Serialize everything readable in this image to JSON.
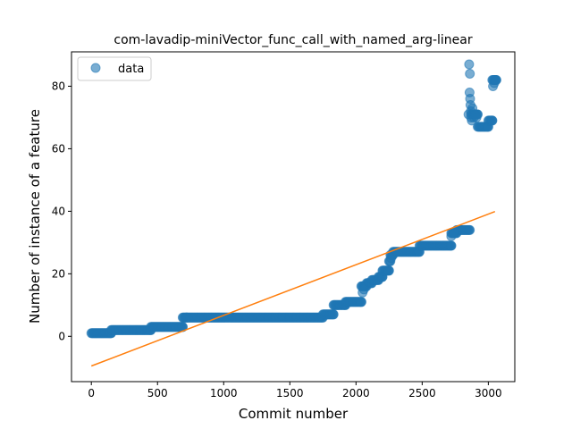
{
  "chart_data": {
    "type": "scatter",
    "title": "com-lavadip-miniVector_func_call_with_named_arg-linear",
    "xlabel": "Commit number",
    "ylabel": "Number of instance of a feature",
    "xlim": [
      -150,
      3200
    ],
    "ylim": [
      -14.5,
      91
    ],
    "xticks": [
      0,
      500,
      1000,
      1500,
      2000,
      2500,
      3000
    ],
    "yticks": [
      0,
      20,
      40,
      60,
      80
    ],
    "legend": {
      "placement": "upper-left",
      "entries": [
        "data"
      ]
    },
    "colors": {
      "data": "#1f77b4",
      "fit": "#ff7f0e"
    },
    "series": [
      {
        "name": "data",
        "segments": [
          {
            "x": [
              0,
              150
            ],
            "y": 1
          },
          {
            "x": [
              150,
              450
            ],
            "y": 2
          },
          {
            "x": [
              450,
              690
            ],
            "y": 3
          },
          {
            "x": [
              690,
              720
            ],
            "y": 6
          },
          {
            "x": [
              720,
              1750
            ],
            "y": 6
          },
          {
            "x": [
              1750,
              1830
            ],
            "y": 7
          },
          {
            "x": [
              1830,
              1920
            ],
            "y": 10
          },
          {
            "x": [
              1920,
              2040
            ],
            "y": 11
          },
          {
            "x": [
              2040,
              2080
            ],
            "y": 16
          },
          {
            "x": [
              2080,
              2120
            ],
            "y": 17
          },
          {
            "x": [
              2120,
              2170
            ],
            "y": 18
          },
          {
            "x": [
              2170,
              2200
            ],
            "y": 19
          },
          {
            "x": [
              2200,
              2250
            ],
            "y": 21
          },
          {
            "x": [
              2250,
              2260
            ],
            "y": 24
          },
          {
            "x": [
              2260,
              2280
            ],
            "y": 26
          },
          {
            "x": [
              2280,
              2480
            ],
            "y": 27
          },
          {
            "x": [
              2480,
              2720
            ],
            "y": 29
          },
          {
            "x": [
              2720,
              2760
            ],
            "y": 33
          },
          {
            "x": [
              2760,
              2860
            ],
            "y": 34
          },
          {
            "x": [
              2870,
              2920
            ],
            "y": 71
          },
          {
            "x": [
              2920,
              3000
            ],
            "y": 67
          },
          {
            "x": [
              3000,
              3030
            ],
            "y": 69
          },
          {
            "x": [
              3030,
              3060
            ],
            "y": 82
          }
        ],
        "points": [
          [
            2050,
            14
          ],
          [
            2060,
            15
          ],
          [
            2265,
            25
          ],
          [
            2720,
            32
          ],
          [
            2740,
            33
          ],
          [
            2855,
            87
          ],
          [
            2860,
            84
          ],
          [
            2858,
            78
          ],
          [
            2862,
            76
          ],
          [
            2865,
            74
          ],
          [
            2868,
            72
          ],
          [
            2850,
            71
          ],
          [
            2870,
            70
          ],
          [
            2875,
            69
          ],
          [
            2880,
            73
          ],
          [
            2890,
            70
          ],
          [
            2900,
            71
          ],
          [
            2910,
            70
          ],
          [
            3035,
            80
          ],
          [
            3045,
            81
          ],
          [
            3050,
            82
          ]
        ]
      }
    ],
    "fit_line": {
      "x": [
        0,
        3050
      ],
      "y": [
        -9.5,
        39.9
      ]
    }
  }
}
